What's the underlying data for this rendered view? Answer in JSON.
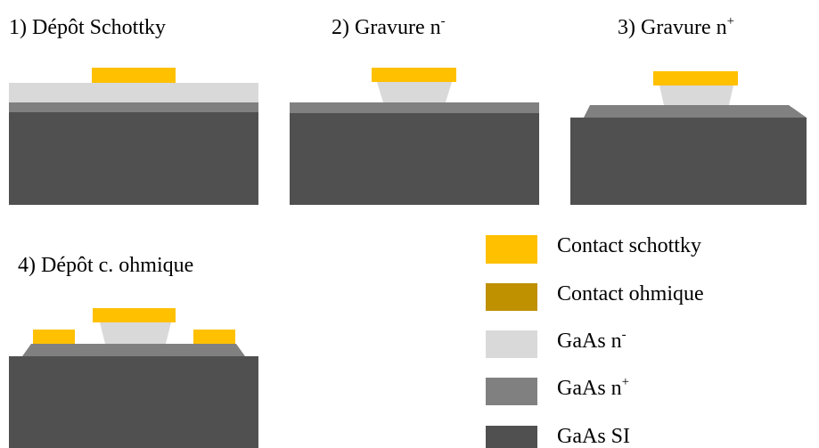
{
  "steps": [
    {
      "label": "1) Dépôt Schottky"
    },
    {
      "label": "2) Gravure n",
      "sup": "-"
    },
    {
      "label": "3) Gravure n",
      "sup": "+"
    },
    {
      "label": "4) Dépôt c. ohmique"
    }
  ],
  "legend": [
    {
      "label": "Contact schottky"
    },
    {
      "label": "Contact ohmique"
    },
    {
      "label": "GaAs n",
      "sup": "-"
    },
    {
      "label": "GaAs n",
      "sup": "+"
    },
    {
      "label": "GaAs SI"
    }
  ]
}
